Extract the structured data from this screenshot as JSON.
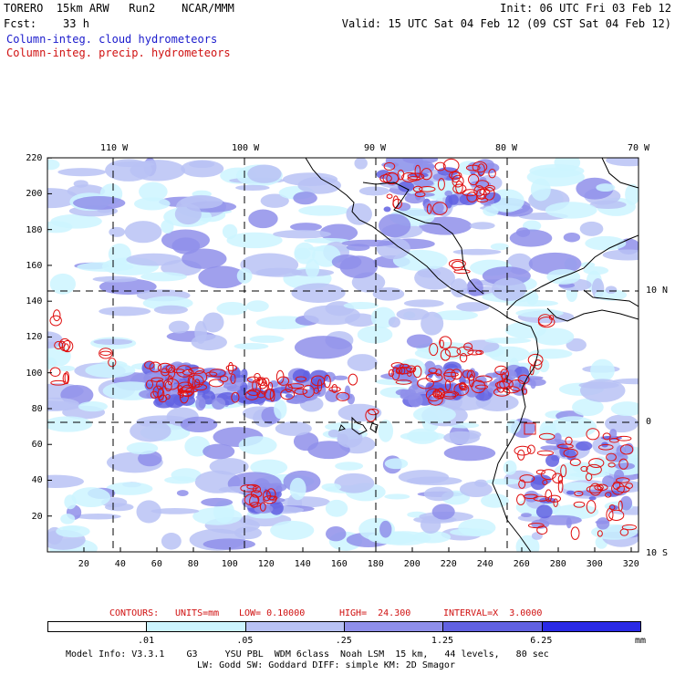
{
  "header": {
    "title": "TORERO  15km ARW   Run2    NCAR/MMM",
    "init": "Init: 06 UTC Fri 03 Feb 12",
    "fcst": "Fcst:    33 h",
    "valid": "Valid: 15 UTC Sat 04 Feb 12 (09 CST Sat 04 Feb 12)",
    "field1": "Column-integ. cloud hydrometeors",
    "field2": "Column-integ. precip. hydrometeors"
  },
  "axes": {
    "lon_labels": [
      "110 W",
      "100 W",
      "90 W",
      "80 W",
      "70 W"
    ],
    "lat_labels": [
      "10 N",
      "0",
      "10 S"
    ],
    "y_ticks": [
      "220",
      "200",
      "180",
      "160",
      "140",
      "120",
      "100",
      "80",
      "60",
      "40",
      "20"
    ],
    "x_ticks": [
      "20",
      "40",
      "60",
      "80",
      "100",
      "120",
      "140",
      "160",
      "180",
      "200",
      "220",
      "240",
      "260",
      "280",
      "300",
      "320"
    ]
  },
  "contours": {
    "label": "CONTOURS:",
    "units": "UNITS=mm",
    "low": "LOW= 0.10000",
    "high": "HIGH=  24.300",
    "interval": "INTERVAL=X  3.0000"
  },
  "colorbar": {
    "levels": [
      ".01",
      ".05",
      ".25",
      "1.25",
      "6.25"
    ],
    "units": "mm",
    "colors": [
      "#ffffff",
      "#ccf4ff",
      "#b8c2f4",
      "#8f8fea",
      "#6161e2",
      "#2a2ae6"
    ]
  },
  "footer": {
    "line1": "Model Info: V3.3.1    G3     YSU PBL  WDM 6class  Noah LSM  15 km,   44 levels,   80 sec",
    "line2": "LW: Godd SW: Goddard DIFF: simple KM: 2D Smagor"
  }
}
